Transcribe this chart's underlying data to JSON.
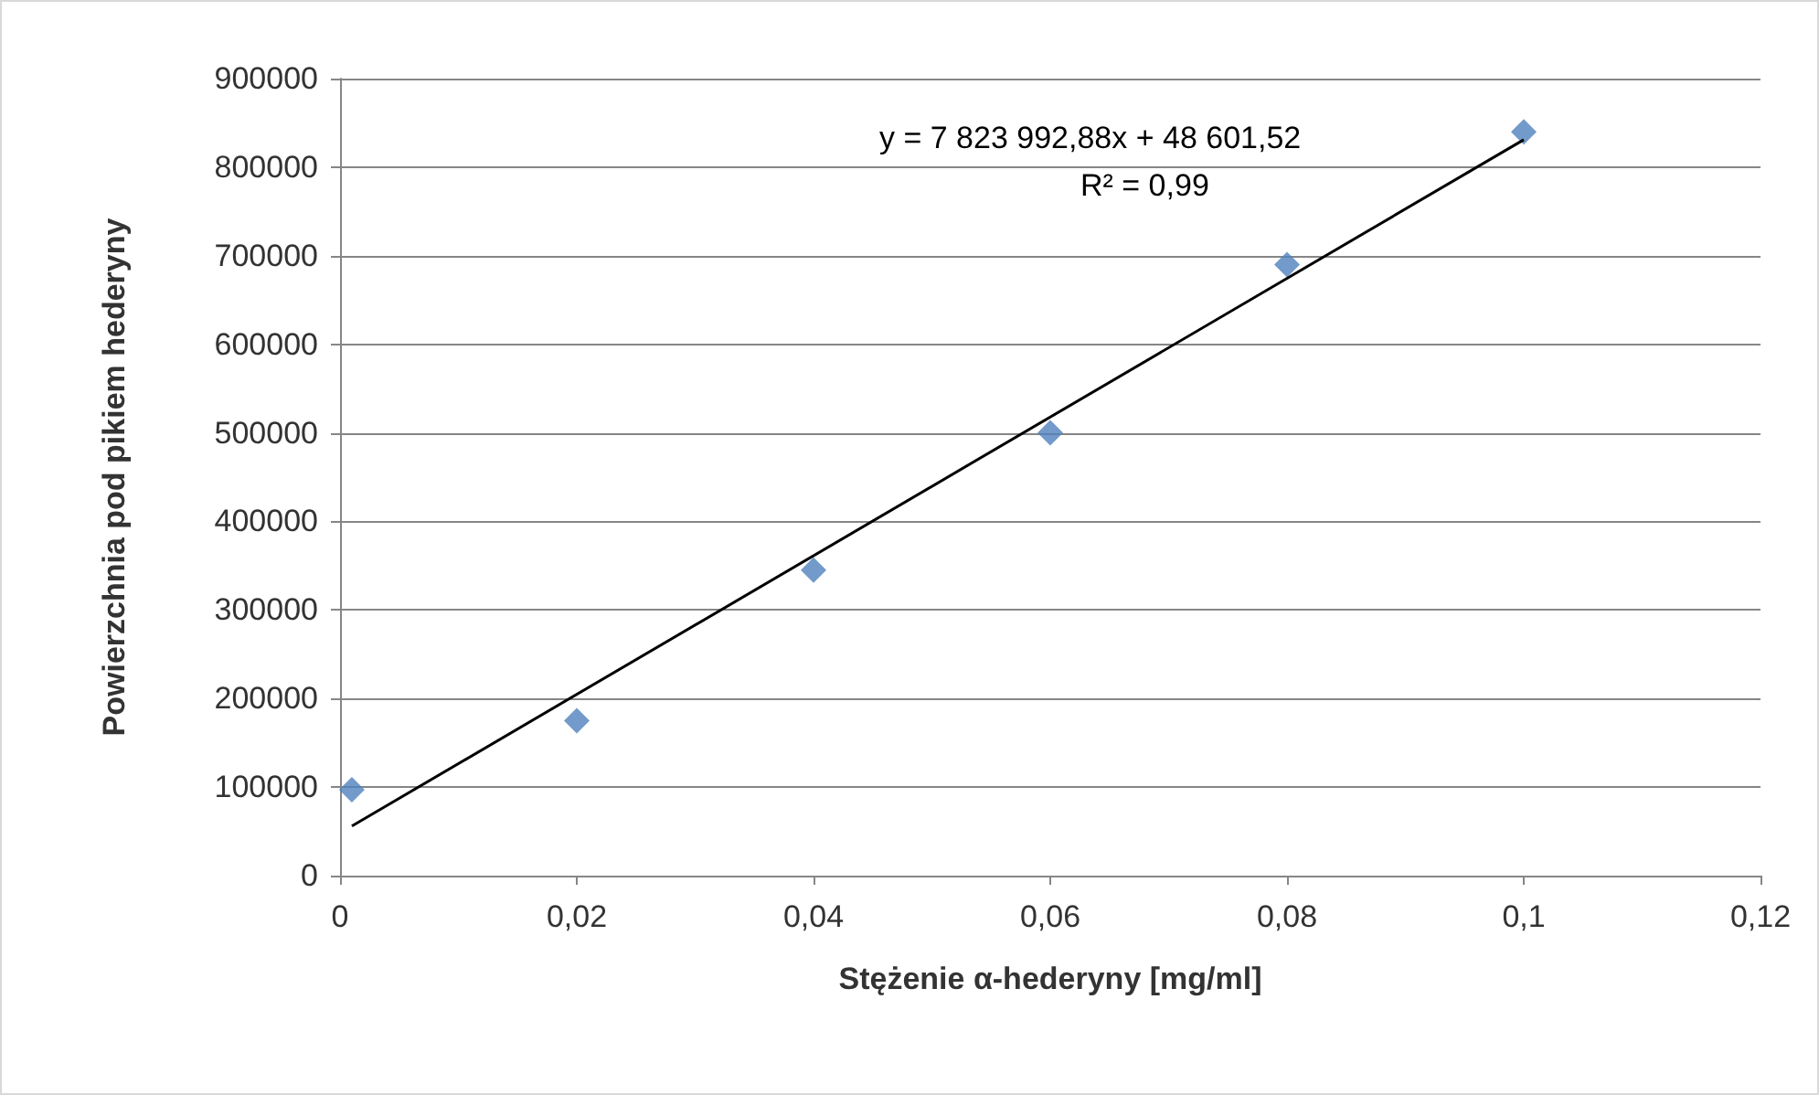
{
  "chart_data": {
    "type": "scatter",
    "xlabel": "Stężenie α-hederyny [mg/ml]",
    "ylabel": "Powierzchnia pod pikiem hederyny",
    "series": [
      {
        "color": "#4f81bd",
        "marker": "diamond",
        "x": [
          0.001,
          0.02,
          0.04,
          0.06,
          0.08,
          0.1
        ],
        "values": [
          97000,
          175000,
          345000,
          500000,
          690000,
          840000
        ]
      },
      {
        "type": "line",
        "color": "#000000",
        "marker": "none",
        "x": [
          0.001,
          0.1
        ],
        "values": [
          56000,
          831000
        ]
      }
    ],
    "xlim": [
      0,
      0.12
    ],
    "xticks": [
      {
        "value": 0,
        "label": "0"
      },
      {
        "value": 0.02,
        "label": "0,02"
      },
      {
        "value": 0.04,
        "label": "0,04"
      },
      {
        "value": 0.06,
        "label": "0,06"
      },
      {
        "value": 0.08,
        "label": "0,08"
      },
      {
        "value": 0.1,
        "label": "0,1"
      },
      {
        "value": 0.12,
        "label": "0,12"
      }
    ],
    "ylim": [
      0,
      900000
    ],
    "yticks": [
      0,
      100000,
      200000,
      300000,
      400000,
      500000,
      600000,
      700000,
      800000,
      900000
    ],
    "grid": "y",
    "annotations": [
      "y = 7 823 992,88x + 48 601,52",
      "R² = 0,99"
    ]
  }
}
